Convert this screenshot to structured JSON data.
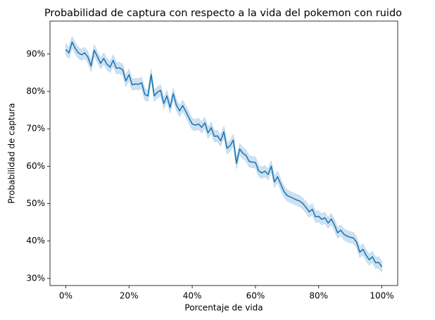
{
  "chart_data": {
    "type": "line",
    "title": "Probabilidad de captura con respecto a la vida del pokemon con ruido",
    "x_label": "Porcentaje de vida",
    "y_label": "Probabilidad de captura",
    "xlim": [
      -5,
      105
    ],
    "ylim": [
      28.1,
      98.8
    ],
    "xticks": [
      {
        "value": 0,
        "label": "0%"
      },
      {
        "value": 20,
        "label": "20%"
      },
      {
        "value": 40,
        "label": "40%"
      },
      {
        "value": 60,
        "label": "60%"
      },
      {
        "value": 80,
        "label": "80%"
      },
      {
        "value": 100,
        "label": "100%"
      }
    ],
    "yticks": [
      {
        "value": 30,
        "label": "30%"
      },
      {
        "value": 40,
        "label": "40%"
      },
      {
        "value": 50,
        "label": "50%"
      },
      {
        "value": 60,
        "label": "60%"
      },
      {
        "value": 70,
        "label": "70%"
      },
      {
        "value": 80,
        "label": "80%"
      },
      {
        "value": 90,
        "label": "90%"
      }
    ],
    "x": [
      0,
      1,
      2,
      3,
      4,
      5,
      6,
      7,
      8,
      9,
      10,
      11,
      12,
      13,
      14,
      15,
      16,
      17,
      18,
      19,
      20,
      21,
      22,
      23,
      24,
      25,
      26,
      27,
      28,
      29,
      30,
      31,
      32,
      33,
      34,
      35,
      36,
      37,
      38,
      39,
      40,
      41,
      42,
      43,
      44,
      45,
      46,
      47,
      48,
      49,
      50,
      51,
      52,
      53,
      54,
      55,
      56,
      57,
      58,
      59,
      60,
      61,
      62,
      63,
      64,
      65,
      66,
      67,
      68,
      69,
      70,
      71,
      72,
      73,
      74,
      75,
      76,
      77,
      78,
      79,
      80,
      81,
      82,
      83,
      84,
      85,
      86,
      87,
      88,
      89,
      90,
      91,
      92,
      93,
      94,
      95,
      96,
      97,
      98,
      99,
      100
    ],
    "series": [
      {
        "color": "#1f77b4",
        "band_color": "#a6c8e3",
        "values": [
          91.2,
          90.3,
          93.2,
          91.5,
          90.3,
          89.8,
          90.3,
          89.2,
          86.8,
          91.0,
          89.3,
          87.5,
          88.8,
          87.3,
          86.5,
          88.3,
          86.2,
          86.3,
          85.8,
          82.8,
          84.5,
          81.8,
          82.0,
          81.9,
          82.3,
          79.2,
          78.8,
          84.5,
          78.8,
          79.8,
          80.3,
          76.8,
          78.8,
          75.7,
          79.4,
          76.3,
          74.8,
          76.2,
          74.6,
          72.9,
          71.3,
          71.0,
          71.3,
          70.4,
          71.6,
          68.9,
          70.3,
          68.0,
          68.1,
          66.8,
          69.2,
          64.8,
          65.5,
          67.0,
          60.8,
          64.6,
          63.5,
          62.9,
          61.3,
          61.1,
          61.0,
          58.8,
          58.2,
          58.7,
          57.8,
          60.0,
          55.8,
          57.2,
          55.2,
          53.3,
          52.2,
          51.8,
          51.4,
          51.0,
          50.7,
          50.0,
          49.0,
          47.8,
          48.5,
          46.5,
          46.6,
          45.8,
          46.2,
          44.8,
          45.9,
          44.3,
          42.2,
          42.9,
          41.8,
          41.3,
          41.0,
          40.8,
          39.7,
          37.0,
          37.8,
          36.2,
          35.0,
          35.8,
          34.2,
          34.3,
          33.1
        ],
        "ci_lower": [
          89.7,
          88.8,
          91.7,
          90.0,
          88.8,
          88.3,
          88.8,
          87.7,
          85.3,
          89.5,
          87.8,
          86.0,
          87.3,
          85.8,
          85.0,
          86.8,
          84.7,
          84.8,
          84.3,
          81.3,
          83.0,
          80.3,
          80.5,
          80.4,
          80.8,
          77.7,
          77.3,
          83.0,
          77.3,
          78.3,
          78.8,
          75.3,
          77.3,
          74.2,
          77.9,
          74.8,
          73.3,
          74.7,
          73.1,
          71.4,
          69.8,
          69.5,
          69.8,
          68.9,
          70.1,
          67.4,
          68.8,
          66.5,
          66.6,
          65.3,
          67.7,
          63.3,
          64.0,
          65.5,
          59.3,
          63.1,
          62.0,
          61.4,
          59.8,
          59.6,
          59.5,
          57.3,
          56.7,
          57.2,
          56.3,
          58.5,
          54.3,
          55.7,
          53.7,
          51.8,
          50.7,
          50.3,
          49.9,
          49.5,
          49.2,
          48.5,
          47.5,
          46.3,
          47.0,
          45.0,
          45.1,
          44.3,
          44.7,
          43.3,
          44.4,
          42.8,
          40.7,
          41.4,
          40.3,
          39.8,
          39.5,
          39.3,
          38.2,
          35.5,
          36.3,
          34.7,
          33.5,
          34.3,
          32.7,
          32.8,
          31.6
        ],
        "ci_upper": [
          92.7,
          91.8,
          94.7,
          93.0,
          91.8,
          91.3,
          91.8,
          90.7,
          88.3,
          92.5,
          90.8,
          89.0,
          90.3,
          88.8,
          88.0,
          89.8,
          87.7,
          87.8,
          87.3,
          84.3,
          86.0,
          83.3,
          83.5,
          83.4,
          83.8,
          80.7,
          80.3,
          86.0,
          80.3,
          81.3,
          81.8,
          78.3,
          80.3,
          77.2,
          80.9,
          77.8,
          76.3,
          77.7,
          76.1,
          74.4,
          72.8,
          72.5,
          72.8,
          71.9,
          73.1,
          70.4,
          71.8,
          69.5,
          69.6,
          68.3,
          70.7,
          66.3,
          67.0,
          68.5,
          62.3,
          66.1,
          65.0,
          64.4,
          62.8,
          62.6,
          62.5,
          60.3,
          59.7,
          60.2,
          59.3,
          61.5,
          57.3,
          58.7,
          56.7,
          54.8,
          53.7,
          53.3,
          52.9,
          52.5,
          52.2,
          51.5,
          50.5,
          49.3,
          50.0,
          48.0,
          48.1,
          47.3,
          47.7,
          46.3,
          47.4,
          45.8,
          43.7,
          44.4,
          43.3,
          42.8,
          42.5,
          42.3,
          41.2,
          38.5,
          39.3,
          37.7,
          36.5,
          37.3,
          35.7,
          35.8,
          34.6
        ]
      }
    ]
  }
}
